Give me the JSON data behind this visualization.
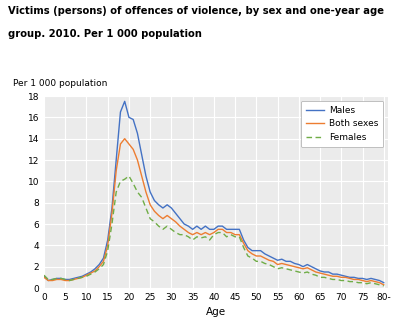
{
  "ages": [
    0,
    1,
    2,
    3,
    4,
    5,
    6,
    7,
    8,
    9,
    10,
    11,
    12,
    13,
    14,
    15,
    16,
    17,
    18,
    19,
    20,
    21,
    22,
    23,
    24,
    25,
    26,
    27,
    28,
    29,
    30,
    31,
    32,
    33,
    34,
    35,
    36,
    37,
    38,
    39,
    40,
    41,
    42,
    43,
    44,
    45,
    46,
    47,
    48,
    49,
    50,
    51,
    52,
    53,
    54,
    55,
    56,
    57,
    58,
    59,
    60,
    61,
    62,
    63,
    64,
    65,
    66,
    67,
    68,
    69,
    70,
    71,
    72,
    73,
    74,
    75,
    76,
    77,
    78,
    79,
    80
  ],
  "males": [
    1.1,
    0.7,
    0.8,
    0.9,
    0.9,
    0.8,
    0.8,
    0.9,
    1.0,
    1.1,
    1.3,
    1.5,
    1.8,
    2.2,
    2.8,
    4.5,
    7.5,
    12.0,
    16.5,
    17.5,
    16.0,
    15.8,
    14.5,
    12.5,
    10.5,
    9.0,
    8.2,
    7.8,
    7.5,
    7.8,
    7.5,
    7.0,
    6.5,
    6.0,
    5.8,
    5.5,
    5.8,
    5.5,
    5.8,
    5.5,
    5.5,
    5.8,
    5.8,
    5.5,
    5.5,
    5.5,
    5.5,
    4.5,
    3.8,
    3.5,
    3.5,
    3.5,
    3.2,
    3.0,
    2.8,
    2.6,
    2.7,
    2.5,
    2.5,
    2.3,
    2.2,
    2.0,
    2.2,
    2.0,
    1.8,
    1.6,
    1.5,
    1.5,
    1.3,
    1.3,
    1.2,
    1.1,
    1.0,
    1.0,
    0.9,
    0.9,
    0.8,
    0.9,
    0.8,
    0.7,
    0.5
  ],
  "both": [
    1.0,
    0.7,
    0.7,
    0.8,
    0.8,
    0.7,
    0.7,
    0.8,
    0.9,
    1.0,
    1.2,
    1.4,
    1.6,
    2.0,
    2.5,
    4.0,
    7.0,
    11.0,
    13.5,
    14.0,
    13.5,
    13.0,
    12.0,
    10.5,
    9.0,
    7.8,
    7.2,
    6.8,
    6.5,
    6.8,
    6.5,
    6.2,
    5.8,
    5.5,
    5.2,
    5.0,
    5.2,
    5.0,
    5.2,
    5.0,
    5.2,
    5.5,
    5.5,
    5.2,
    5.2,
    5.0,
    5.0,
    4.2,
    3.5,
    3.2,
    3.0,
    3.0,
    2.8,
    2.6,
    2.5,
    2.2,
    2.3,
    2.2,
    2.1,
    2.0,
    1.9,
    1.8,
    1.9,
    1.7,
    1.5,
    1.4,
    1.3,
    1.2,
    1.1,
    1.1,
    1.0,
    1.0,
    0.9,
    0.8,
    0.8,
    0.7,
    0.6,
    0.7,
    0.6,
    0.5,
    0.3
  ],
  "females": [
    1.2,
    0.8,
    0.8,
    0.9,
    0.9,
    0.8,
    0.7,
    0.8,
    0.9,
    1.0,
    1.1,
    1.3,
    1.5,
    1.8,
    2.2,
    3.5,
    6.0,
    9.0,
    10.0,
    10.2,
    10.5,
    9.8,
    9.0,
    8.5,
    7.5,
    6.5,
    6.2,
    5.8,
    5.5,
    5.8,
    5.5,
    5.2,
    5.0,
    5.0,
    4.8,
    4.5,
    4.8,
    4.7,
    4.8,
    4.5,
    5.0,
    5.2,
    5.2,
    4.8,
    5.0,
    4.8,
    4.8,
    3.8,
    3.0,
    2.8,
    2.5,
    2.5,
    2.3,
    2.2,
    2.0,
    1.8,
    1.9,
    1.8,
    1.7,
    1.6,
    1.5,
    1.4,
    1.5,
    1.3,
    1.2,
    1.0,
    1.0,
    0.9,
    0.8,
    0.8,
    0.7,
    0.7,
    0.6,
    0.6,
    0.5,
    0.5,
    0.4,
    0.5,
    0.4,
    0.3,
    0.2
  ],
  "males_color": "#4472c4",
  "both_color": "#ed7d31",
  "females_color": "#70ad47",
  "title_line1": "Victims (persons) of offences of violence, by sex and one-year age",
  "title_line2": "group. 2010. Per 1 000 population",
  "ylabel": "Per 1 000 population",
  "xlabel": "Age",
  "ylim": [
    0,
    18
  ],
  "yticks": [
    0,
    2,
    4,
    6,
    8,
    10,
    12,
    14,
    16,
    18
  ],
  "xtick_vals": [
    0,
    5,
    10,
    15,
    20,
    25,
    30,
    35,
    40,
    45,
    50,
    55,
    60,
    65,
    70,
    75,
    80
  ],
  "bg_color": "#ebebeb",
  "grid_color": "#ffffff"
}
